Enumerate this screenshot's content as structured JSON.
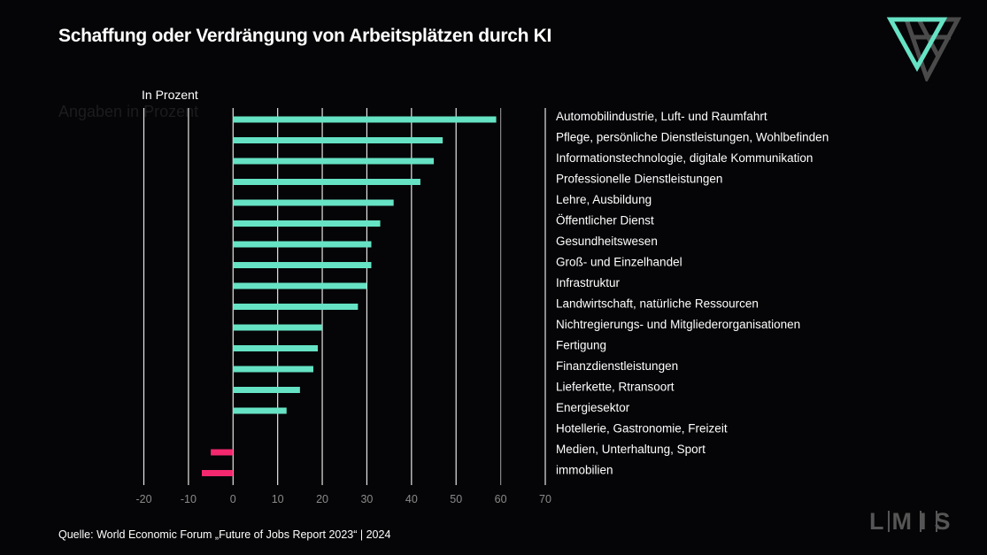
{
  "header": {
    "title": "Schaffung oder Verdrängung von Arbeitsplätzen durch KI"
  },
  "ghost_text": "Angaben in Prozent",
  "footer": {
    "source": "Quelle: World Economic Forum „Future of Jobs Report 2023“ | 2024",
    "brand": "LMIS"
  },
  "colors": {
    "positive": "#66e3c4",
    "negative": "#f4286f",
    "grid": "#e6e6e6",
    "background": "#050507"
  },
  "chart_data": {
    "type": "bar",
    "orientation": "horizontal",
    "unit_label": "In Prozent",
    "categories": [
      "Automobilindustrie, Luft- und Raumfahrt",
      "Pflege, persönliche Dienstleistungen, Wohlbefinden",
      "Informationstechnologie, digitale Kommunikation",
      "Professionelle Dienstleistungen",
      "Lehre, Ausbildung",
      "Öffentlicher Dienst",
      "Gesundheitswesen",
      "Groß- und Einzelhandel",
      "Infrastruktur",
      "Landwirtschaft, natürliche Ressourcen",
      "Nichtregierungs- und Mitgliederorganisationen",
      "Fertigung",
      "Finanzdienstleistungen",
      "Lieferkette, Rtransoort",
      "Energiesektor",
      "Hotellerie, Gastronomie, Freizeit",
      "Medien, Unterhaltung, Sport",
      "immobilien"
    ],
    "values": [
      59,
      47,
      45,
      42,
      36,
      33,
      31,
      31,
      30,
      28,
      20,
      19,
      18,
      15,
      12,
      0,
      -5,
      -7
    ],
    "xlim": [
      -20,
      70
    ],
    "xticks": [
      "-20",
      "-10",
      "0",
      "10",
      "20",
      "30",
      "40",
      "50",
      "60",
      "70"
    ],
    "grid": true
  }
}
